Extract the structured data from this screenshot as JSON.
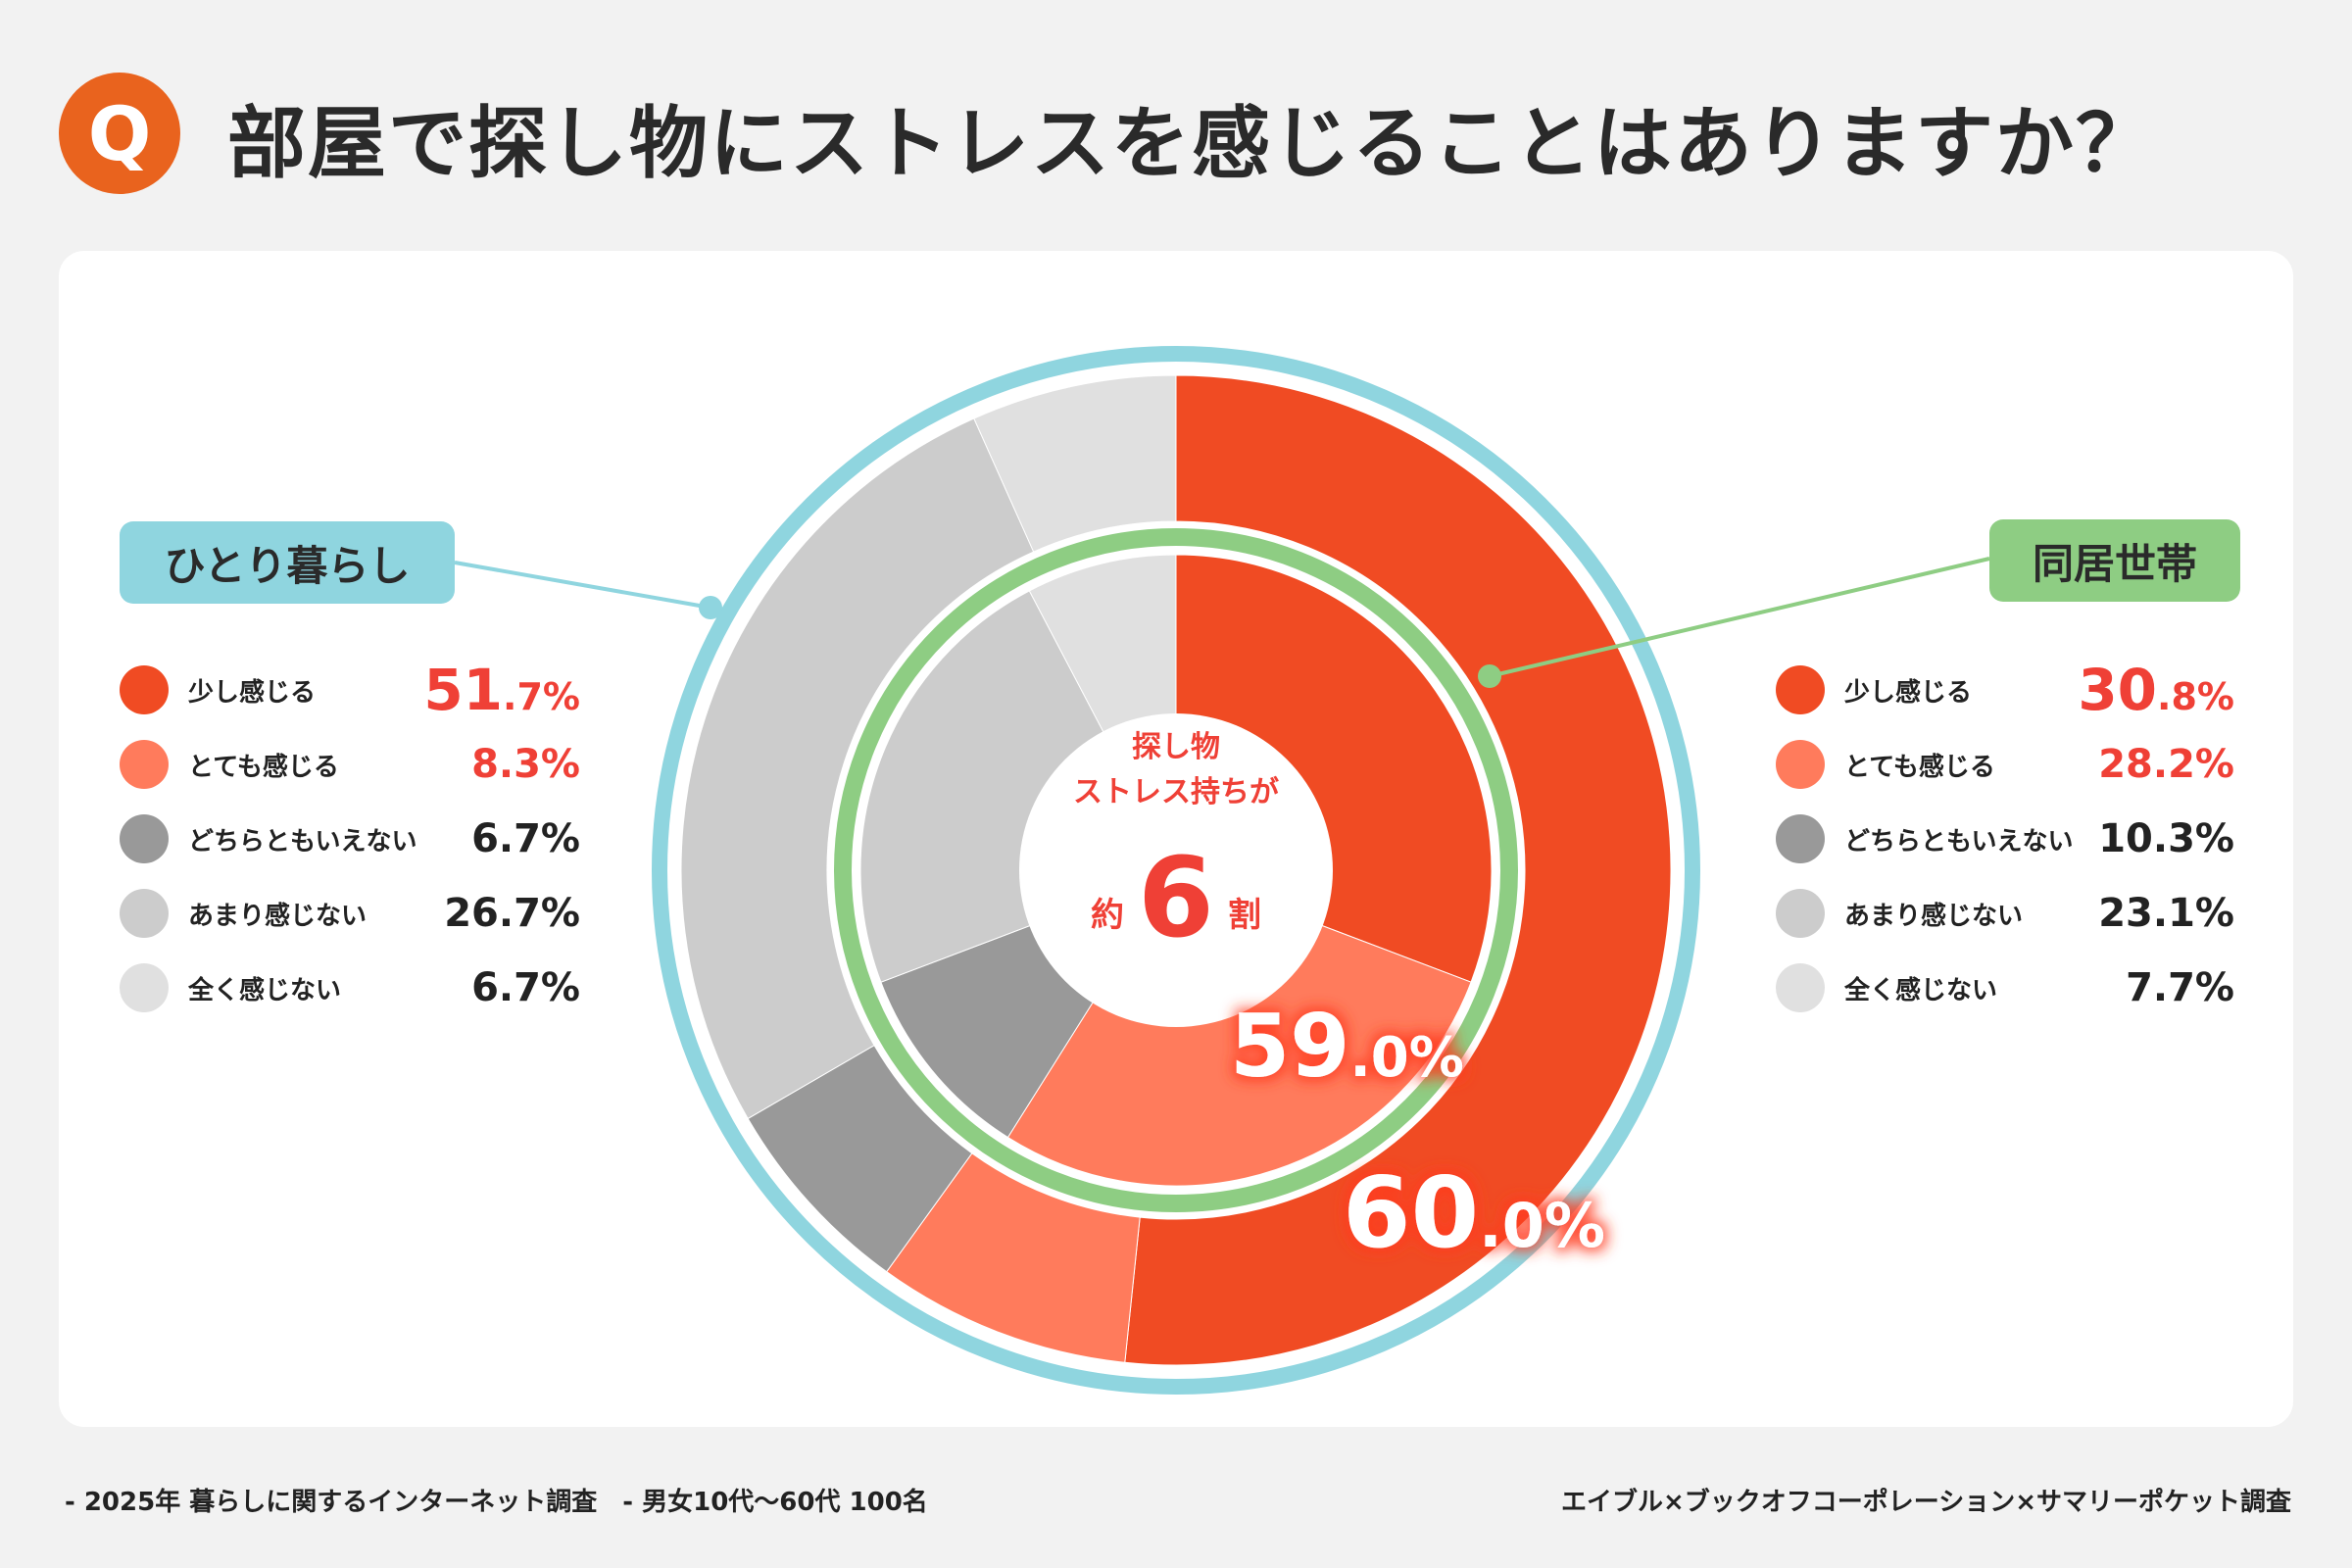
{
  "header": {
    "badge": "Q",
    "question": "部屋で探し物にストレスを感じることはありますか？"
  },
  "groups": {
    "left": {
      "label": "ひとり暮らし",
      "rows": [
        {
          "cat": "少し感じる",
          "int": "51",
          "frac": ".7%",
          "color": "#f04b23",
          "text_color": "red",
          "big": true
        },
        {
          "cat": "とても感じる",
          "int": "8.3%",
          "frac": "",
          "color": "#ff7b5c",
          "text_color": "red",
          "big": false
        },
        {
          "cat": "どちらともいえない",
          "int": "6.7%",
          "frac": "",
          "color": "#999999",
          "text_color": "dark",
          "big": false
        },
        {
          "cat": "あまり感じない",
          "int": "26.7%",
          "frac": "",
          "color": "#cccccc",
          "text_color": "dark",
          "big": false
        },
        {
          "cat": "全く感じない",
          "int": "6.7%",
          "frac": "",
          "color": "#e0e0e0",
          "text_color": "dark",
          "big": false
        }
      ]
    },
    "right": {
      "label": "同居世帯",
      "rows": [
        {
          "cat": "少し感じる",
          "int": "30",
          "frac": ".8%",
          "color": "#f04b23",
          "text_color": "red",
          "big": true
        },
        {
          "cat": "とても感じる",
          "int": "28.2%",
          "frac": "",
          "color": "#ff7b5c",
          "text_color": "red",
          "big": false
        },
        {
          "cat": "どちらともいえない",
          "int": "10.3%",
          "frac": "",
          "color": "#999999",
          "text_color": "dark",
          "big": false
        },
        {
          "cat": "あまり感じない",
          "int": "23.1%",
          "frac": "",
          "color": "#cccccc",
          "text_color": "dark",
          "big": false
        },
        {
          "cat": "全く感じない",
          "int": "7.7%",
          "frac": "",
          "color": "#e0e0e0",
          "text_color": "dark",
          "big": false
        }
      ]
    }
  },
  "center": {
    "line1": "探し物",
    "line2": "ストレス持ちが",
    "pre": "約",
    "num": "6",
    "post": "割"
  },
  "totals": {
    "inner": {
      "int": "59",
      "frac": ".0%"
    },
    "outer": {
      "int": "60",
      "frac": ".0%"
    }
  },
  "colors": {
    "outer_ring": "#8fd5df",
    "inner_ring": "#8ecd83",
    "accent_red": "#ef4036"
  },
  "chart_data": {
    "type": "pie",
    "categories": [
      "少し感じる",
      "とても感じる",
      "どちらともいえない",
      "あまり感じない",
      "全く感じない"
    ],
    "series": [
      {
        "name": "ひとり暮らし",
        "values": [
          51.7,
          8.3,
          6.7,
          26.7,
          6.7
        ]
      },
      {
        "name": "同居世帯",
        "values": [
          30.8,
          28.2,
          10.3,
          23.1,
          7.7
        ]
      }
    ],
    "colors": [
      "#f04b23",
      "#ff7b5c",
      "#999999",
      "#cccccc",
      "#e0e0e0"
    ],
    "totals": {
      "ひとり暮らし": "60.0%",
      "同居世帯": "59.0%"
    }
  },
  "footer": {
    "left": "- 2025年 暮らしに関するインターネット調査　- 男女10代〜60代 100名",
    "right": "エイブル×ブックオフコーポレーション×サマリーポケット調査"
  }
}
